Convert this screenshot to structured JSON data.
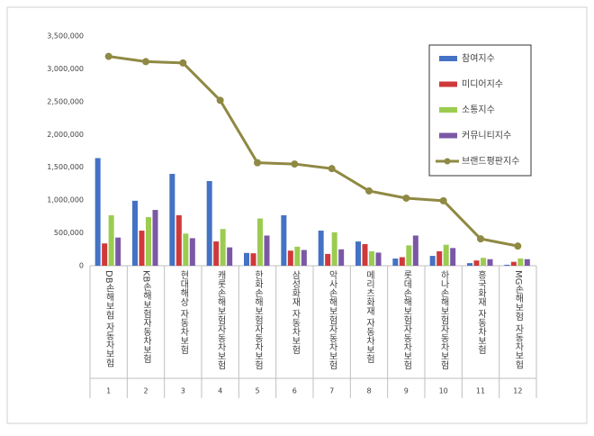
{
  "chart_data": {
    "type": "bar_line",
    "categories": [
      "DB손해보험 자동차보험",
      "KB손해보험자동차보험",
      "현대해상 자동차보험",
      "캐롯손해보험자동차보험",
      "한화손해보험자동차보험",
      "삼성화재 자동차보험",
      "악사손해보험자동차보험",
      "메리츠화재 자동차보험",
      "롯데손해보험자동차보험",
      "하나손해보험자동차보험",
      "흥국화재 자동차보험",
      "MG손해보험 자동차보험"
    ],
    "category_ranks": [
      1,
      2,
      3,
      4,
      5,
      6,
      7,
      8,
      9,
      10,
      11,
      12
    ],
    "series": [
      {
        "name": "참여지수",
        "type": "bar",
        "color": "#4472c4",
        "values": [
          1640000,
          990000,
          1400000,
          1290000,
          195000,
          770000,
          535000,
          370000,
          110000,
          150000,
          40000,
          15000
        ]
      },
      {
        "name": "미디어지수",
        "type": "bar",
        "color": "#d0393a",
        "values": [
          340000,
          535000,
          770000,
          370000,
          190000,
          230000,
          180000,
          330000,
          130000,
          220000,
          80000,
          60000
        ]
      },
      {
        "name": "소통지수",
        "type": "bar",
        "color": "#9bcc50",
        "values": [
          770000,
          740000,
          490000,
          560000,
          720000,
          290000,
          510000,
          220000,
          310000,
          320000,
          120000,
          110000
        ]
      },
      {
        "name": "커뮤니티지수",
        "type": "bar",
        "color": "#7b58a6",
        "values": [
          430000,
          850000,
          420000,
          280000,
          460000,
          240000,
          250000,
          200000,
          460000,
          270000,
          100000,
          100000
        ]
      },
      {
        "name": "브랜드평판지수",
        "type": "line",
        "color": "#8f8943",
        "values": [
          3190000,
          3110000,
          3090000,
          2520000,
          1570000,
          1550000,
          1480000,
          1140000,
          1030000,
          990000,
          410000,
          300000
        ]
      }
    ],
    "ylim": [
      0,
      3500000
    ],
    "yticks": [
      0,
      {
        "value": 500000,
        "label": "500,000"
      },
      {
        "value": 1000000,
        "label": "1,000,000"
      },
      {
        "value": 1500000,
        "label": "1,500,000"
      },
      {
        "value": 2000000,
        "label": "2,000,000"
      },
      {
        "value": 2500000,
        "label": "2,500,000"
      },
      {
        "value": 3000000,
        "label": "3,000,000"
      },
      {
        "value": 3500000,
        "label": "3,500,000"
      }
    ],
    "grid": false,
    "legend": "upper right"
  }
}
